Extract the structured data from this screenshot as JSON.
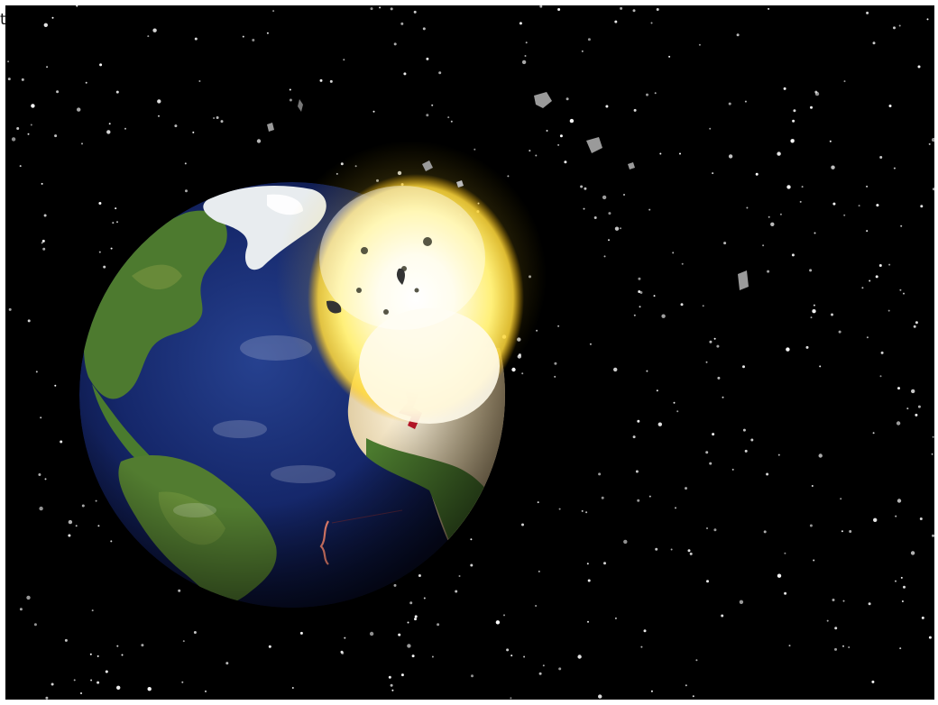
{
  "page": {
    "stray_text": "t"
  },
  "scene": {
    "description_icon": "planet-earth-explosion",
    "colors": {
      "space": "#000000",
      "ocean": "#1a2c6e",
      "land": "#4f7a30",
      "desert": "#d6c39a",
      "ice": "#e8ecef",
      "explosion_core": "#fffbe0",
      "explosion_outer": "#ffd83a",
      "debris": "#9a9a9a",
      "star": "#ffffff",
      "crack": "#c4162a"
    }
  }
}
